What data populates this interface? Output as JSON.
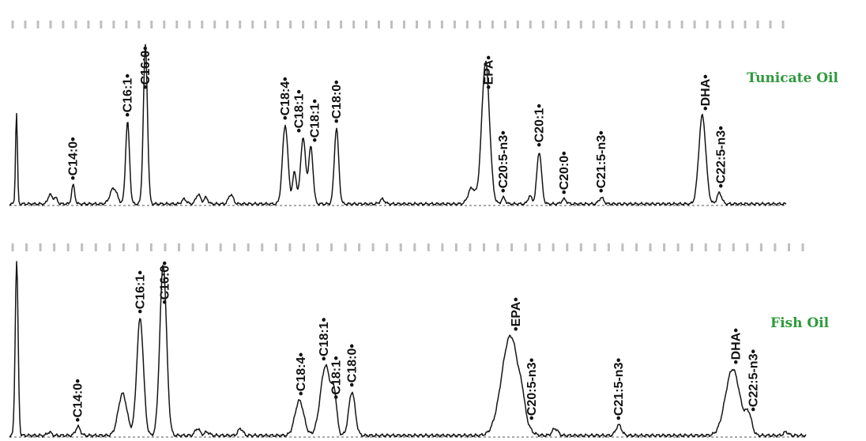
{
  "chart_data": [
    {
      "type": "line",
      "title": "Tunicate Oil",
      "title_color": "#2e9a3c",
      "line_color": "#151515",
      "x_range": [
        0,
        100
      ],
      "y_range": [
        0,
        100
      ],
      "grid": false,
      "peak_labels": [
        {
          "label": "C14:0",
          "x": 8.2
        },
        {
          "label": "C16:1",
          "x": 15.2
        },
        {
          "label": "C16:0",
          "x": 17.5
        },
        {
          "label": "C18:4",
          "x": 35.5
        },
        {
          "label": "C18:1",
          "x": 37.3
        },
        {
          "label": "C18:1",
          "x": 39.3
        },
        {
          "label": "C18:0",
          "x": 42.1
        },
        {
          "label": "EPA",
          "x": 61.7
        },
        {
          "label": "C20:5-n3",
          "x": 63.6
        },
        {
          "label": "C20:1",
          "x": 68.2
        },
        {
          "label": "C20:0",
          "x": 71.4
        },
        {
          "label": "C21:5-n3",
          "x": 76.2
        },
        {
          "label": "DHA",
          "x": 89.6
        },
        {
          "label": "C22:5-n3",
          "x": 91.6
        }
      ],
      "peaks": [
        {
          "x": 0.9,
          "y": 58,
          "w": 0.12
        },
        {
          "x": 5.2,
          "y": 6,
          "w": 0.25
        },
        {
          "x": 5.9,
          "y": 4,
          "w": 0.25
        },
        {
          "x": 8.2,
          "y": 12,
          "w": 0.2
        },
        {
          "x": 13.4,
          "y": 10,
          "w": 0.45
        },
        {
          "x": 15.2,
          "y": 52,
          "w": 0.25
        },
        {
          "x": 17.5,
          "y": 100,
          "w": 0.26
        },
        {
          "x": 22.5,
          "y": 3,
          "w": 0.3
        },
        {
          "x": 24.3,
          "y": 6,
          "w": 0.3
        },
        {
          "x": 25.3,
          "y": 4,
          "w": 0.25
        },
        {
          "x": 28.5,
          "y": 6,
          "w": 0.3
        },
        {
          "x": 35.5,
          "y": 50,
          "w": 0.35
        },
        {
          "x": 36.7,
          "y": 20,
          "w": 0.25
        },
        {
          "x": 37.8,
          "y": 42,
          "w": 0.32
        },
        {
          "x": 38.8,
          "y": 36,
          "w": 0.28
        },
        {
          "x": 42.1,
          "y": 48,
          "w": 0.28
        },
        {
          "x": 48.0,
          "y": 3,
          "w": 0.3
        },
        {
          "x": 59.5,
          "y": 10,
          "w": 0.45
        },
        {
          "x": 61.3,
          "y": 90,
          "w": 0.5
        },
        {
          "x": 63.6,
          "y": 4,
          "w": 0.25
        },
        {
          "x": 67.0,
          "y": 5,
          "w": 0.25
        },
        {
          "x": 68.2,
          "y": 33,
          "w": 0.3
        },
        {
          "x": 71.4,
          "y": 3,
          "w": 0.3
        },
        {
          "x": 76.2,
          "y": 4,
          "w": 0.3
        },
        {
          "x": 89.2,
          "y": 56,
          "w": 0.45
        },
        {
          "x": 91.4,
          "y": 7,
          "w": 0.3
        }
      ]
    },
    {
      "type": "line",
      "title": "Fish Oil",
      "title_color": "#2e9a3c",
      "line_color": "#151515",
      "x_range": [
        0,
        100
      ],
      "y_range": [
        0,
        100
      ],
      "grid": false,
      "peak_labels": [
        {
          "label": "C14:0",
          "x": 8.6
        },
        {
          "label": "C16:1",
          "x": 16.4
        },
        {
          "label": "C16:0",
          "x": 19.5
        },
        {
          "label": "C18:4",
          "x": 36.6
        },
        {
          "label": "C18:1",
          "x": 39.5
        },
        {
          "label": "C18:1",
          "x": 41.0
        },
        {
          "label": "C18:0",
          "x": 43.0
        },
        {
          "label": "EPA",
          "x": 63.6
        },
        {
          "label": "C20:5-n3",
          "x": 65.6
        },
        {
          "label": "C21:5-n3",
          "x": 76.5
        },
        {
          "label": "DHA",
          "x": 91.2
        },
        {
          "label": "C22:5-n3",
          "x": 93.4
        }
      ],
      "peaks": [
        {
          "x": 0.9,
          "y": 100,
          "w": 0.18
        },
        {
          "x": 5.0,
          "y": 2,
          "w": 0.25
        },
        {
          "x": 8.6,
          "y": 5,
          "w": 0.3
        },
        {
          "x": 14.2,
          "y": 24,
          "w": 0.55
        },
        {
          "x": 16.4,
          "y": 67,
          "w": 0.42
        },
        {
          "x": 19.3,
          "y": 98,
          "w": 0.42
        },
        {
          "x": 23.6,
          "y": 4,
          "w": 0.3
        },
        {
          "x": 24.8,
          "y": 2,
          "w": 0.3
        },
        {
          "x": 29.0,
          "y": 4,
          "w": 0.3
        },
        {
          "x": 36.4,
          "y": 20,
          "w": 0.55
        },
        {
          "x": 39.7,
          "y": 40,
          "w": 0.65
        },
        {
          "x": 40.8,
          "y": 18,
          "w": 0.3
        },
        {
          "x": 43.0,
          "y": 25,
          "w": 0.4
        },
        {
          "x": 62.9,
          "y": 57,
          "w": 1.1
        },
        {
          "x": 64.4,
          "y": 6,
          "w": 0.3
        },
        {
          "x": 68.5,
          "y": 4,
          "w": 0.35
        },
        {
          "x": 76.5,
          "y": 6,
          "w": 0.35
        },
        {
          "x": 90.8,
          "y": 38,
          "w": 0.9
        },
        {
          "x": 92.8,
          "y": 11,
          "w": 0.4
        },
        {
          "x": 97.5,
          "y": 2,
          "w": 0.3
        }
      ]
    }
  ]
}
